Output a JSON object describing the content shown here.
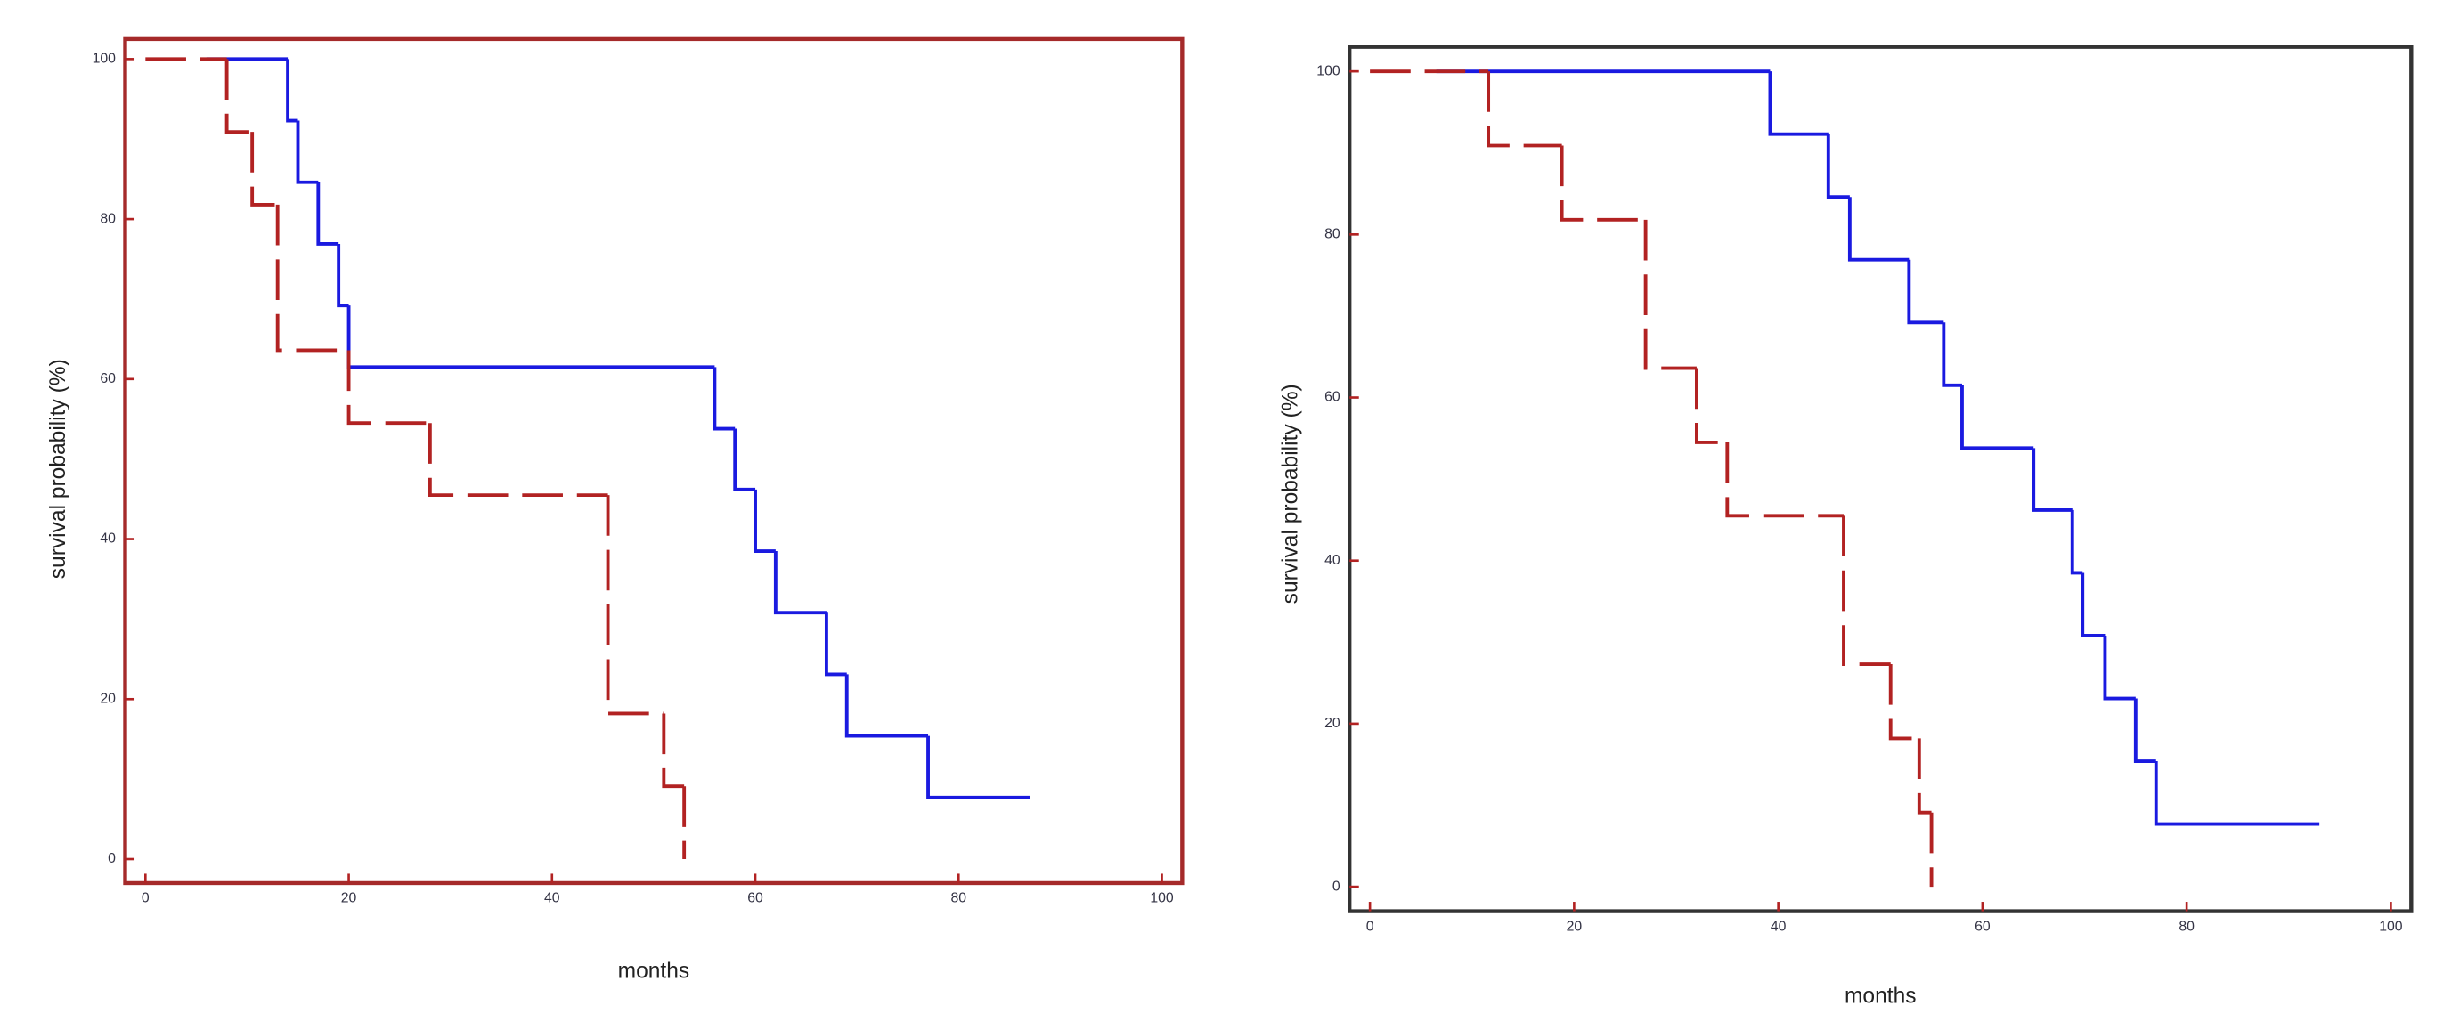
{
  "chart_data": [
    {
      "type": "step",
      "xlabel": "months",
      "ylabel": "survival probability (%)",
      "xlim": [
        -2,
        102
      ],
      "ylim": [
        -3,
        102.5
      ],
      "xticks": [
        0,
        20,
        40,
        60,
        80,
        100
      ],
      "yticks": [
        0,
        20,
        40,
        60,
        80,
        100
      ],
      "frame_color": "#a52a2a",
      "series": [
        {
          "color": "#1a1ae0",
          "dashed": false,
          "x": [
            6,
            14,
            15,
            17,
            19,
            20,
            56,
            58,
            60,
            62,
            67,
            69,
            77,
            87
          ],
          "values": [
            100,
            92.3,
            84.6,
            76.9,
            69.2,
            61.5,
            53.8,
            46.2,
            38.5,
            30.8,
            23.1,
            15.4,
            7.7,
            7.7
          ]
        },
        {
          "color": "#b22222",
          "dashed": true,
          "x": [
            0,
            8,
            10.5,
            13,
            20,
            28,
            45.5,
            51,
            53
          ],
          "values": [
            100,
            90.9,
            81.8,
            63.6,
            54.5,
            45.5,
            18.2,
            9.1,
            0
          ]
        }
      ]
    },
    {
      "type": "step",
      "xlabel": "months",
      "ylabel": "survival probability (%)",
      "xlim": [
        -2,
        102
      ],
      "ylim": [
        -3,
        103
      ],
      "xticks": [
        0,
        20,
        40,
        60,
        80,
        100
      ],
      "yticks": [
        0,
        20,
        40,
        60,
        80,
        100
      ],
      "frame_color": "#333333",
      "series": [
        {
          "color": "#1a1ae0",
          "dashed": false,
          "x": [
            6.5,
            39.2,
            44.9,
            47,
            52.8,
            56.2,
            58,
            65,
            68.8,
            69.8,
            72,
            75,
            77,
            93
          ],
          "values": [
            100,
            92.3,
            84.6,
            76.9,
            69.2,
            61.5,
            53.8,
            46.2,
            38.5,
            30.8,
            23.1,
            15.4,
            7.7,
            7.7
          ]
        },
        {
          "color": "#b22222",
          "dashed": true,
          "x": [
            0,
            11.6,
            18.8,
            27,
            32,
            35,
            46.4,
            51,
            53.8,
            55
          ],
          "values": [
            100,
            90.9,
            81.8,
            63.6,
            54.5,
            45.5,
            27.3,
            18.2,
            9.1,
            0
          ]
        }
      ]
    }
  ]
}
